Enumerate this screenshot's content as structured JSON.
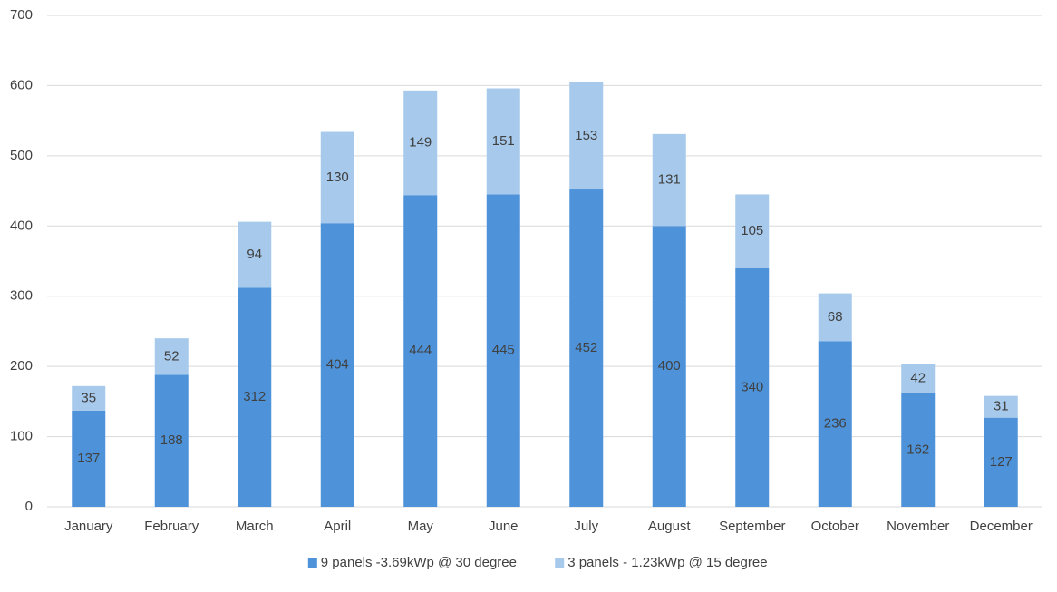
{
  "chart_data": {
    "type": "stacked_bar",
    "categories": [
      "January",
      "February",
      "March",
      "April",
      "May",
      "June",
      "July",
      "August",
      "September",
      "October",
      "November",
      "December"
    ],
    "series": [
      {
        "name": "9 panels -3.69kWp @ 30 degree",
        "color": "#4e93d9",
        "values": [
          137,
          188,
          312,
          404,
          444,
          445,
          452,
          400,
          340,
          236,
          162,
          127
        ]
      },
      {
        "name": "3 panels - 1.23kWp @ 15 degree",
        "color": "#a6c9ec",
        "values": [
          35,
          52,
          94,
          130,
          149,
          151,
          153,
          131,
          105,
          68,
          42,
          31
        ]
      }
    ],
    "ylim": [
      0,
      700
    ],
    "yticks": [
      0,
      100,
      200,
      300,
      400,
      500,
      600,
      700
    ],
    "grid": true,
    "legend": "bottom"
  }
}
